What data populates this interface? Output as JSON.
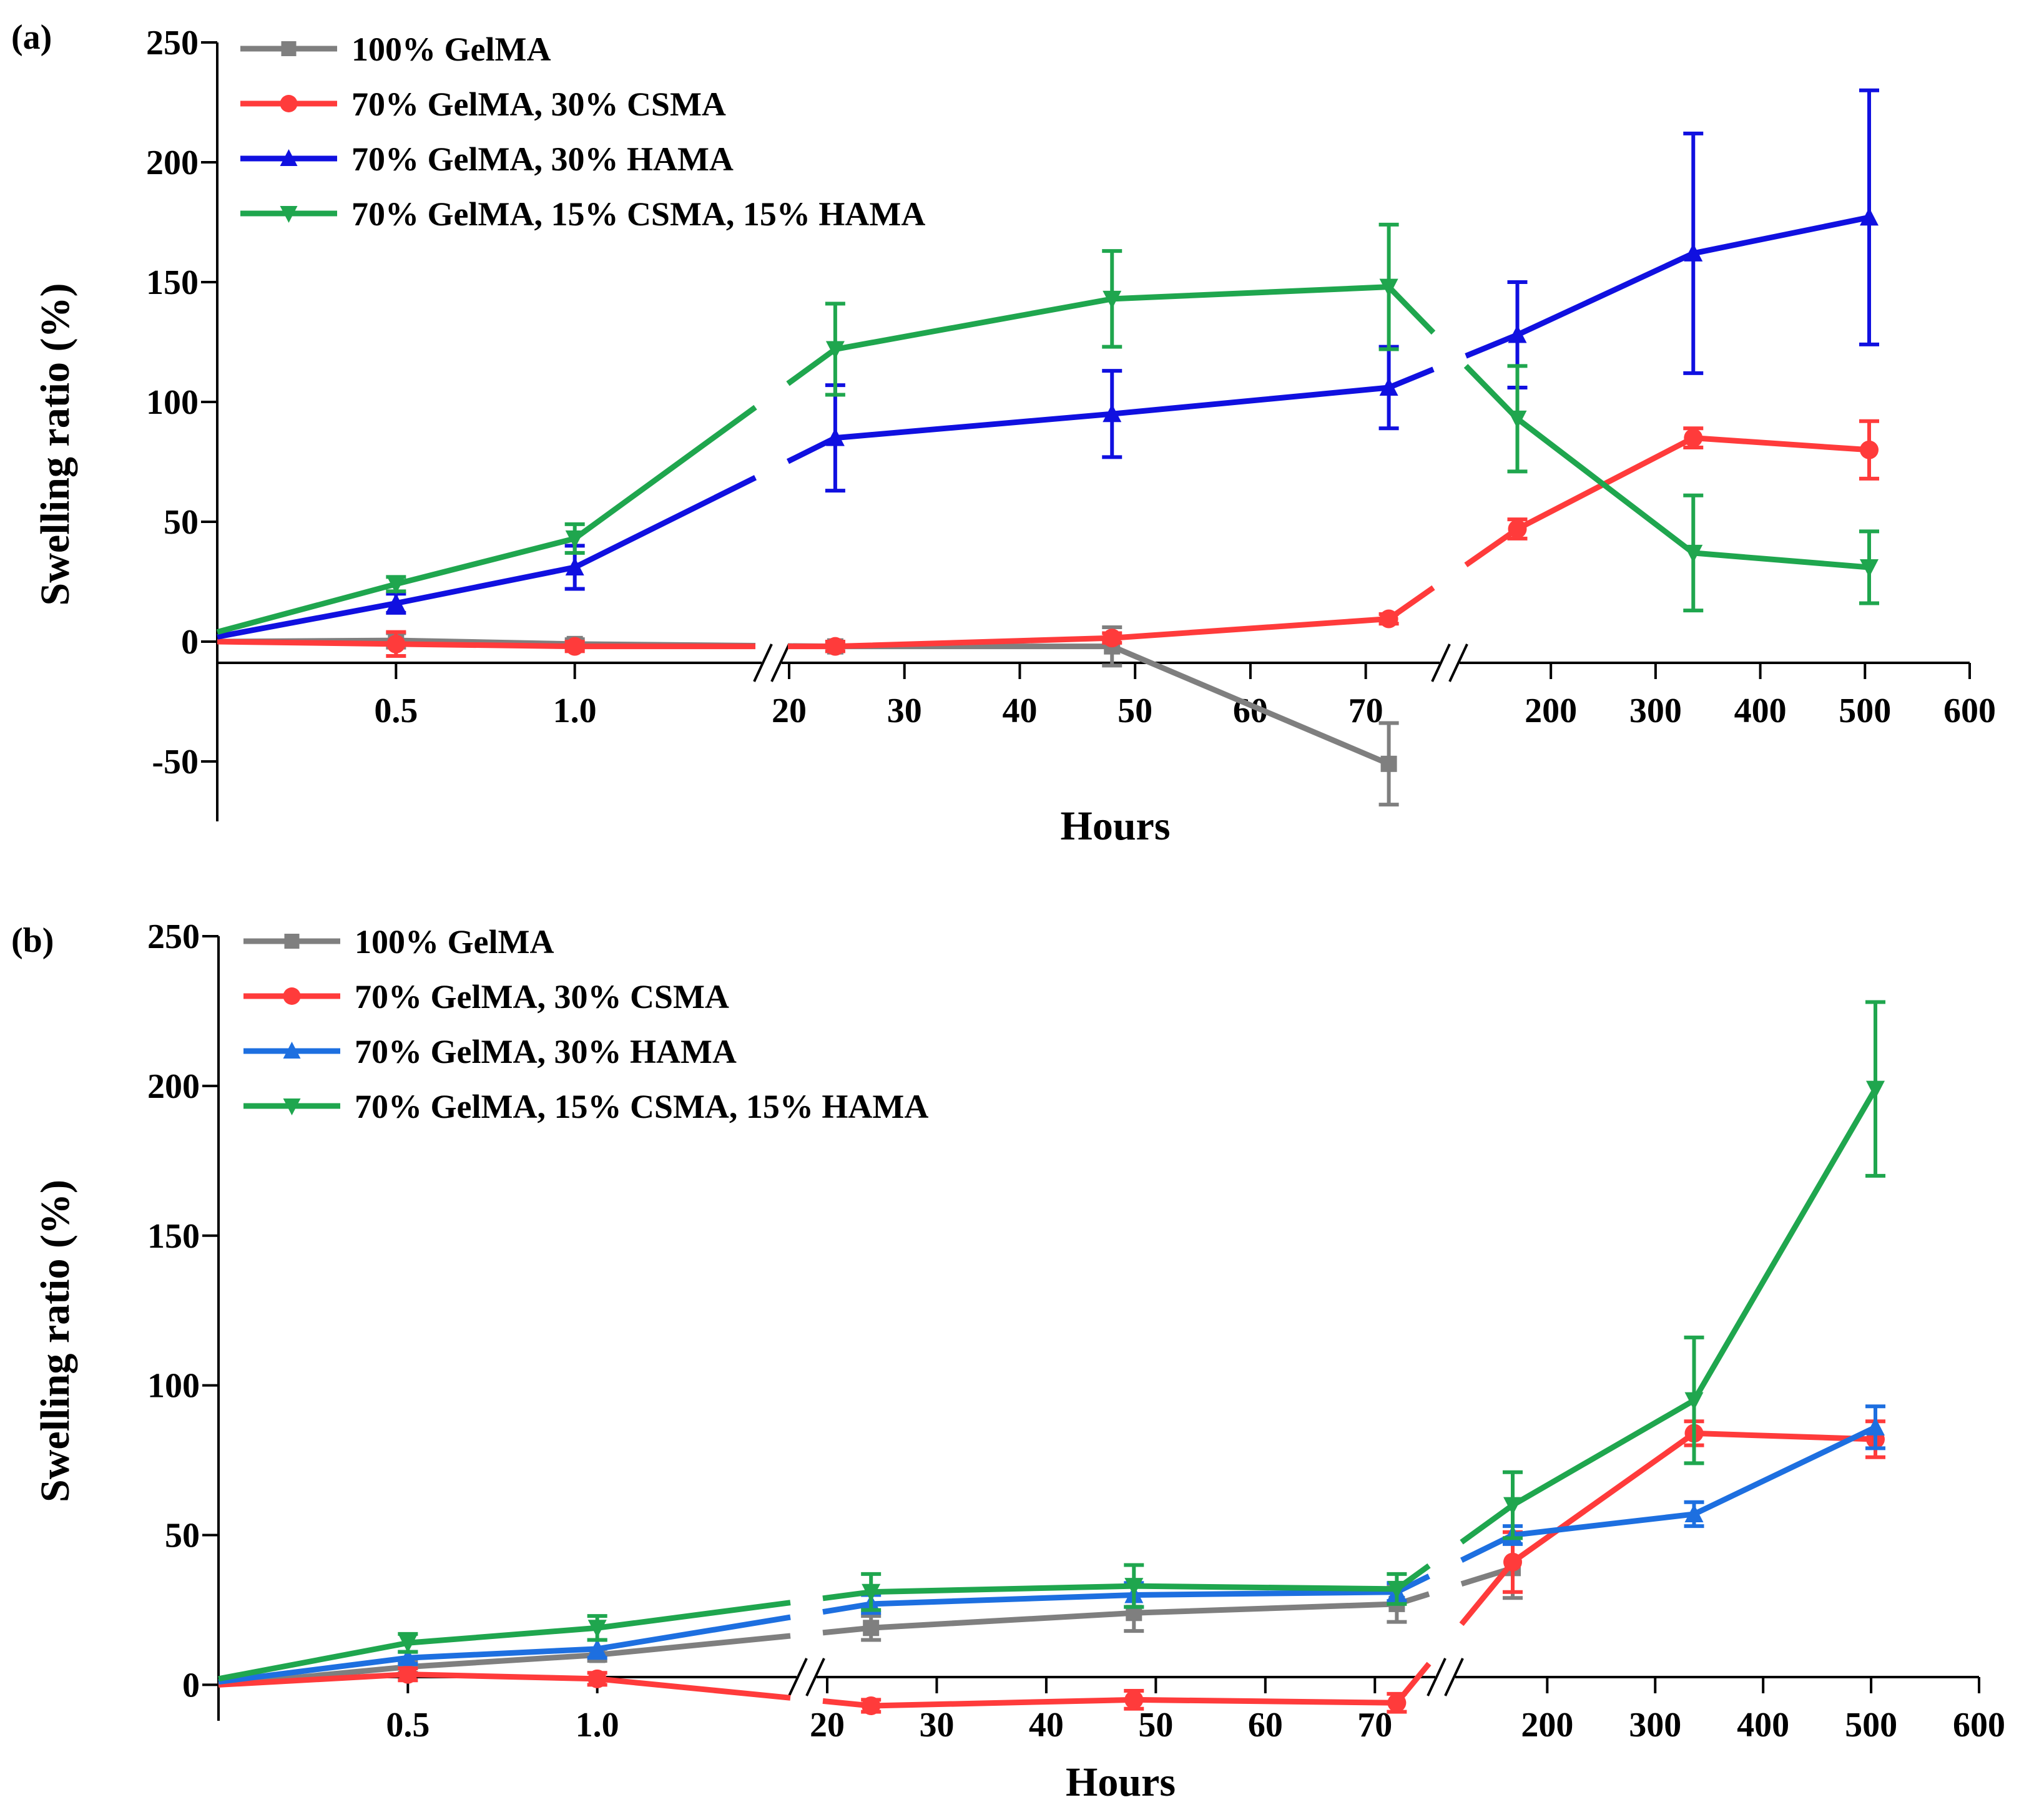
{
  "chart_data": [
    {
      "panel": "(a)",
      "type": "line",
      "xlabel": "Hours",
      "ylabel": "Swelling ratio (%)",
      "ylim": [
        -75,
        250
      ],
      "yticks": [
        -50,
        0,
        50,
        100,
        150,
        200,
        250
      ],
      "ytick_labels": [
        "-50",
        "0",
        "50",
        "100",
        "150",
        "200",
        "250"
      ],
      "xaxis_segments": [
        {
          "range": [
            0,
            1.5
          ],
          "ticks": [
            0.5,
            1.0
          ],
          "tick_labels": [
            "0.5",
            "1.0"
          ]
        },
        {
          "range": [
            20,
            75
          ],
          "ticks": [
            20,
            30,
            40,
            50,
            60,
            70
          ],
          "tick_labels": [
            "20",
            "30",
            "40",
            "50",
            "60",
            "70"
          ]
        },
        {
          "range": [
            120,
            600
          ],
          "ticks": [
            200,
            300,
            400,
            500,
            600
          ],
          "tick_labels": [
            "200",
            "300",
            "400",
            "500",
            "600"
          ]
        }
      ],
      "legend_position": "top-left",
      "series": [
        {
          "name": "100% GelMA",
          "color": "#7f7f7f",
          "marker": "square",
          "x": [
            0,
            0.5,
            1.0,
            24,
            48,
            72
          ],
          "values": [
            0,
            0.5,
            -1,
            -2,
            -2,
            -51
          ],
          "errors": [
            0,
            3,
            2,
            2,
            8,
            17
          ]
        },
        {
          "name": "70% GelMA, 30% CSMA",
          "color": "#ff3b3b",
          "marker": "circle",
          "x": [
            0,
            0.5,
            1.0,
            24,
            48,
            72,
            168,
            336,
            504
          ],
          "values": [
            0,
            -1,
            -2,
            -2,
            1.5,
            9.5,
            47,
            85,
            80
          ],
          "errors": [
            0,
            5,
            2,
            2,
            2,
            2,
            4,
            4,
            12
          ]
        },
        {
          "name": "70% GelMA, 30% HAMA",
          "color": "#1010e0",
          "marker": "triangle-up",
          "x": [
            0,
            0.5,
            1.0,
            24,
            48,
            72,
            168,
            336,
            504
          ],
          "values": [
            2,
            16,
            31,
            85,
            95,
            106,
            128,
            162,
            177
          ],
          "errors": [
            0,
            4,
            9,
            22,
            18,
            17,
            22,
            50,
            53
          ]
        },
        {
          "name": "70% GelMA, 15% CSMA, 15% HAMA",
          "color": "#1fa64e",
          "marker": "triangle-down",
          "x": [
            0,
            0.5,
            1.0,
            24,
            48,
            72,
            168,
            336,
            504
          ],
          "values": [
            4,
            24,
            43,
            122,
            143,
            148,
            93,
            37,
            31
          ],
          "errors": [
            0,
            3,
            6,
            19,
            20,
            26,
            22,
            24,
            15
          ]
        }
      ]
    },
    {
      "panel": "(b)",
      "type": "line",
      "xlabel": "Hours",
      "ylabel": "Swelling ratio (%)",
      "ylim": [
        -12,
        250
      ],
      "yticks": [
        0,
        50,
        100,
        150,
        200,
        250
      ],
      "ytick_labels": [
        "0",
        "50",
        "100",
        "150",
        "200",
        "250"
      ],
      "xaxis_segments": [
        {
          "range": [
            0,
            1.5
          ],
          "ticks": [
            0.5,
            1.0
          ],
          "tick_labels": [
            "0.5",
            "1.0"
          ]
        },
        {
          "range": [
            20,
            75
          ],
          "ticks": [
            20,
            30,
            40,
            50,
            60,
            70
          ],
          "tick_labels": [
            "20",
            "30",
            "40",
            "50",
            "60",
            "70"
          ]
        },
        {
          "range": [
            120,
            600
          ],
          "ticks": [
            200,
            300,
            400,
            500,
            600
          ],
          "tick_labels": [
            "200",
            "300",
            "400",
            "500",
            "600"
          ]
        }
      ],
      "legend_position": "top-left",
      "series": [
        {
          "name": "100% GelMA",
          "color": "#7f7f7f",
          "marker": "square",
          "x": [
            0,
            0.5,
            1.0,
            24,
            48,
            72,
            168
          ],
          "values": [
            0,
            6,
            10,
            19,
            24,
            27,
            39
          ],
          "errors": [
            0,
            2,
            2,
            4,
            6,
            6,
            10
          ]
        },
        {
          "name": "70% GelMA, 30% CSMA",
          "color": "#ff3b3b",
          "marker": "circle",
          "x": [
            0,
            0.5,
            1.0,
            24,
            48,
            72,
            168,
            336,
            504
          ],
          "values": [
            0,
            3.5,
            2,
            -7,
            -5,
            -6,
            41,
            84,
            82
          ],
          "errors": [
            0,
            2,
            2,
            2,
            3,
            3,
            10,
            4,
            6
          ]
        },
        {
          "name": "70% GelMA, 30% HAMA",
          "color": "#1d6fe0",
          "marker": "triangle-up",
          "x": [
            0,
            0.5,
            1.0,
            24,
            48,
            72,
            168,
            336,
            504
          ],
          "values": [
            1,
            9,
            12,
            27,
            30,
            31,
            50,
            57,
            86
          ],
          "errors": [
            0,
            2,
            3,
            3,
            4,
            3,
            3,
            4,
            7
          ]
        },
        {
          "name": "70% GelMA, 15% CSMA, 15% HAMA",
          "color": "#1fa64e",
          "marker": "triangle-down",
          "x": [
            0,
            0.5,
            1.0,
            24,
            48,
            72,
            168,
            336,
            504
          ],
          "values": [
            2,
            14,
            19,
            31,
            33,
            32,
            60,
            95,
            199
          ],
          "errors": [
            0,
            3,
            4,
            6,
            7,
            5,
            11,
            21,
            29
          ]
        }
      ]
    }
  ]
}
